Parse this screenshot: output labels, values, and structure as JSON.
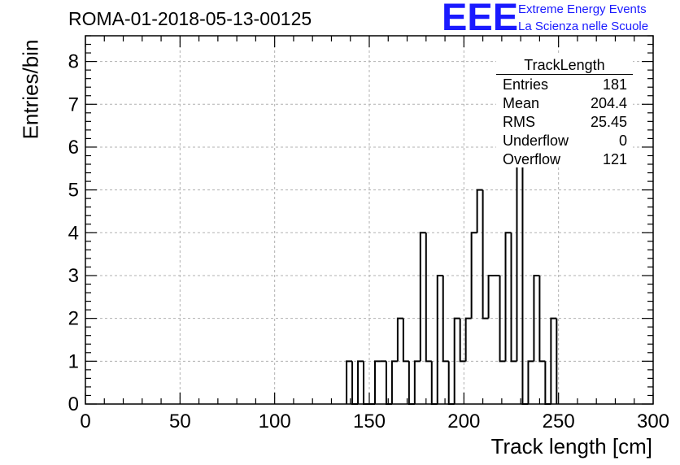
{
  "header": {
    "run_title": "ROMA-01-2018-05-13-00125",
    "logo_text": "EEE",
    "logo_line1": "Extreme Energy Events",
    "logo_line2": "La Scienza nelle Scuole",
    "logo_color": "#1a1aff"
  },
  "stats_box": {
    "title": "TrackLength",
    "rows": [
      {
        "key": "Entries",
        "value": "181"
      },
      {
        "key": "Mean",
        "value": "204.4"
      },
      {
        "key": "RMS",
        "value": "25.45"
      },
      {
        "key": "Underflow",
        "value": "0"
      },
      {
        "key": "Overflow",
        "value": "121"
      }
    ]
  },
  "chart_data": {
    "type": "bar",
    "style": "step-histogram",
    "title": "ROMA-01-2018-05-13-00125",
    "xlabel": "Track length [cm]",
    "ylabel": "Entries/bin",
    "xlim": [
      0,
      300
    ],
    "ylim": [
      0,
      8.6
    ],
    "grid": true,
    "x_ticks": [
      0,
      50,
      100,
      150,
      200,
      250,
      300
    ],
    "y_ticks": [
      0,
      1,
      2,
      3,
      4,
      5,
      6,
      7,
      8
    ],
    "bin_width": 3,
    "bins": [
      {
        "x": 138,
        "y": 1
      },
      {
        "x": 141,
        "y": 0
      },
      {
        "x": 144,
        "y": 1
      },
      {
        "x": 147,
        "y": 0
      },
      {
        "x": 150,
        "y": 0
      },
      {
        "x": 153,
        "y": 1
      },
      {
        "x": 156,
        "y": 1
      },
      {
        "x": 159,
        "y": 0
      },
      {
        "x": 162,
        "y": 1
      },
      {
        "x": 165,
        "y": 2
      },
      {
        "x": 168,
        "y": 1
      },
      {
        "x": 171,
        "y": 0
      },
      {
        "x": 174,
        "y": 1
      },
      {
        "x": 177,
        "y": 4
      },
      {
        "x": 180,
        "y": 1
      },
      {
        "x": 183,
        "y": 0
      },
      {
        "x": 186,
        "y": 3
      },
      {
        "x": 189,
        "y": 1
      },
      {
        "x": 192,
        "y": 0
      },
      {
        "x": 195,
        "y": 2
      },
      {
        "x": 198,
        "y": 1
      },
      {
        "x": 201,
        "y": 2
      },
      {
        "x": 204,
        "y": 4
      },
      {
        "x": 207,
        "y": 5
      },
      {
        "x": 210,
        "y": 2
      },
      {
        "x": 213,
        "y": 3
      },
      {
        "x": 216,
        "y": 3
      },
      {
        "x": 219,
        "y": 1
      },
      {
        "x": 222,
        "y": 4
      },
      {
        "x": 225,
        "y": 1
      },
      {
        "x": 228,
        "y": 8
      },
      {
        "x": 231,
        "y": 0
      },
      {
        "x": 234,
        "y": 1
      },
      {
        "x": 237,
        "y": 3
      },
      {
        "x": 240,
        "y": 1
      },
      {
        "x": 243,
        "y": 0
      },
      {
        "x": 246,
        "y": 2
      }
    ]
  }
}
